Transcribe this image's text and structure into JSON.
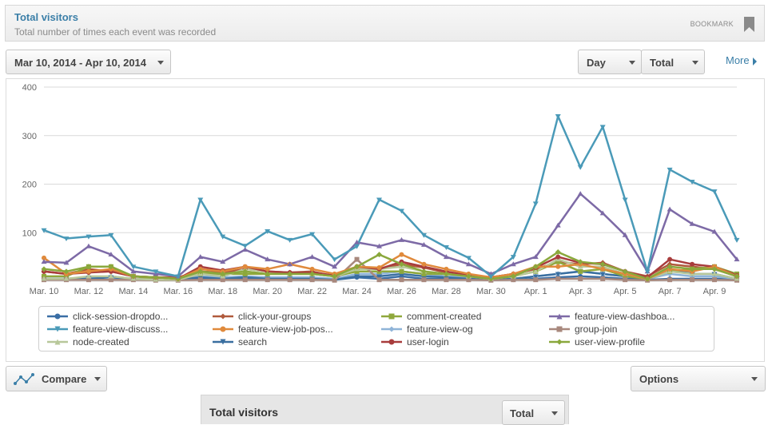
{
  "header": {
    "title": "Total visitors",
    "subtitle": "Total number of times each event was recorded",
    "bookmark_label": "BOOKMARK"
  },
  "toolbar": {
    "date_range": "Mar 10, 2014 - Apr 10, 2014",
    "interval": "Day",
    "measure": "Total",
    "more_label": "More"
  },
  "footer": {
    "compare_label": "Compare",
    "options_label": "Options",
    "table_title": "Total visitors",
    "table_select": "Total"
  },
  "chart_data": {
    "type": "line",
    "ylim": [
      0,
      400
    ],
    "y_ticks": [
      100,
      200,
      300,
      400
    ],
    "grid": true,
    "legend_position": "bottom",
    "x_tick_labels": [
      "Mar. 10",
      "Mar. 12",
      "Mar. 14",
      "Mar. 16",
      "Mar. 18",
      "Mar. 20",
      "Mar. 22",
      "Mar. 24",
      "Mar. 26",
      "Mar. 28",
      "Mar. 30",
      "Apr. 1",
      "Apr. 3",
      "Apr. 5",
      "Apr. 7",
      "Apr. 9"
    ],
    "categories": [
      "Mar 10",
      "Mar 11",
      "Mar 12",
      "Mar 13",
      "Mar 14",
      "Mar 15",
      "Mar 16",
      "Mar 17",
      "Mar 18",
      "Mar 19",
      "Mar 20",
      "Mar 21",
      "Mar 22",
      "Mar 23",
      "Mar 24",
      "Mar 25",
      "Mar 26",
      "Mar 27",
      "Mar 28",
      "Mar 29",
      "Mar 30",
      "Mar 31",
      "Apr 1",
      "Apr 2",
      "Apr 3",
      "Apr 4",
      "Apr 5",
      "Apr 6",
      "Apr 7",
      "Apr 8",
      "Apr 9",
      "Apr 10"
    ],
    "series": [
      {
        "name": "click-session-dropdo...",
        "color": "#3a6ea5",
        "marker": "circle",
        "values": [
          5,
          5,
          8,
          8,
          5,
          3,
          3,
          5,
          5,
          5,
          3,
          3,
          5,
          3,
          8,
          5,
          10,
          5,
          5,
          3,
          3,
          3,
          5,
          8,
          10,
          8,
          5,
          3,
          5,
          5,
          5,
          5
        ]
      },
      {
        "name": "click-your-groups",
        "color": "#b05a3c",
        "marker": "diamond",
        "values": [
          20,
          15,
          25,
          20,
          10,
          8,
          8,
          20,
          18,
          25,
          20,
          18,
          20,
          10,
          30,
          25,
          35,
          28,
          18,
          10,
          8,
          15,
          25,
          40,
          35,
          38,
          20,
          10,
          35,
          30,
          25,
          10
        ]
      },
      {
        "name": "comment-created",
        "color": "#8fa83c",
        "marker": "square",
        "values": [
          10,
          10,
          30,
          30,
          10,
          5,
          5,
          15,
          15,
          15,
          15,
          15,
          15,
          10,
          20,
          20,
          20,
          15,
          15,
          10,
          5,
          10,
          20,
          40,
          20,
          25,
          10,
          5,
          20,
          25,
          30,
          15
        ]
      },
      {
        "name": "feature-view-dashboa...",
        "color": "#7d6aa6",
        "marker": "triangle-up",
        "values": [
          40,
          38,
          72,
          55,
          20,
          15,
          10,
          50,
          40,
          65,
          45,
          35,
          50,
          30,
          80,
          72,
          85,
          75,
          50,
          35,
          15,
          35,
          50,
          115,
          180,
          140,
          95,
          20,
          148,
          118,
          102,
          45
        ]
      },
      {
        "name": "feature-view-discuss...",
        "color": "#4a9ab8",
        "marker": "triangle-down",
        "values": [
          105,
          88,
          92,
          95,
          30,
          20,
          10,
          168,
          92,
          73,
          103,
          85,
          97,
          45,
          72,
          168,
          145,
          95,
          70,
          48,
          10,
          50,
          160,
          340,
          235,
          318,
          168,
          20,
          230,
          205,
          185,
          85
        ]
      },
      {
        "name": "feature-view-job-pos...",
        "color": "#e08a3c",
        "marker": "circle",
        "values": [
          48,
          15,
          20,
          25,
          10,
          8,
          5,
          25,
          20,
          30,
          25,
          35,
          25,
          15,
          30,
          28,
          55,
          35,
          25,
          15,
          8,
          15,
          30,
          30,
          35,
          25,
          15,
          5,
          25,
          20,
          30,
          10
        ]
      },
      {
        "name": "feature-view-og",
        "color": "#8fb4d8",
        "marker": "diamond",
        "values": [
          5,
          5,
          8,
          10,
          5,
          3,
          3,
          10,
          8,
          10,
          8,
          8,
          8,
          5,
          15,
          15,
          20,
          15,
          10,
          8,
          3,
          5,
          10,
          15,
          20,
          15,
          10,
          5,
          15,
          10,
          10,
          5
        ]
      },
      {
        "name": "group-join",
        "color": "#a8887d",
        "marker": "square",
        "values": [
          3,
          3,
          3,
          3,
          3,
          2,
          2,
          3,
          3,
          3,
          3,
          3,
          3,
          2,
          45,
          3,
          3,
          3,
          3,
          3,
          2,
          3,
          3,
          5,
          5,
          5,
          3,
          2,
          3,
          3,
          3,
          2
        ]
      },
      {
        "name": "node-created",
        "color": "#b8c89a",
        "marker": "triangle-up",
        "values": [
          5,
          5,
          10,
          10,
          5,
          3,
          3,
          15,
          10,
          25,
          20,
          15,
          15,
          10,
          25,
          25,
          30,
          20,
          15,
          10,
          5,
          10,
          20,
          45,
          30,
          30,
          15,
          5,
          20,
          15,
          15,
          5
        ]
      },
      {
        "name": "search",
        "color": "#3a6fa0",
        "marker": "triangle-down",
        "values": [
          5,
          5,
          5,
          8,
          5,
          3,
          3,
          8,
          5,
          8,
          5,
          5,
          5,
          3,
          10,
          10,
          15,
          10,
          8,
          5,
          3,
          5,
          10,
          15,
          20,
          15,
          10,
          3,
          25,
          15,
          15,
          5
        ]
      },
      {
        "name": "user-login",
        "color": "#a83c3c",
        "marker": "circle",
        "values": [
          20,
          15,
          18,
          20,
          10,
          8,
          5,
          30,
          22,
          30,
          20,
          18,
          18,
          12,
          30,
          25,
          40,
          30,
          20,
          12,
          8,
          15,
          28,
          50,
          38,
          35,
          20,
          8,
          45,
          35,
          30,
          12
        ]
      },
      {
        "name": "user-view-profile",
        "color": "#8aa83c",
        "marker": "diamond",
        "values": [
          25,
          20,
          30,
          30,
          10,
          8,
          5,
          20,
          15,
          20,
          15,
          15,
          15,
          10,
          30,
          55,
          35,
          20,
          15,
          10,
          5,
          10,
          30,
          60,
          40,
          35,
          20,
          5,
          30,
          25,
          25,
          10
        ]
      }
    ]
  }
}
